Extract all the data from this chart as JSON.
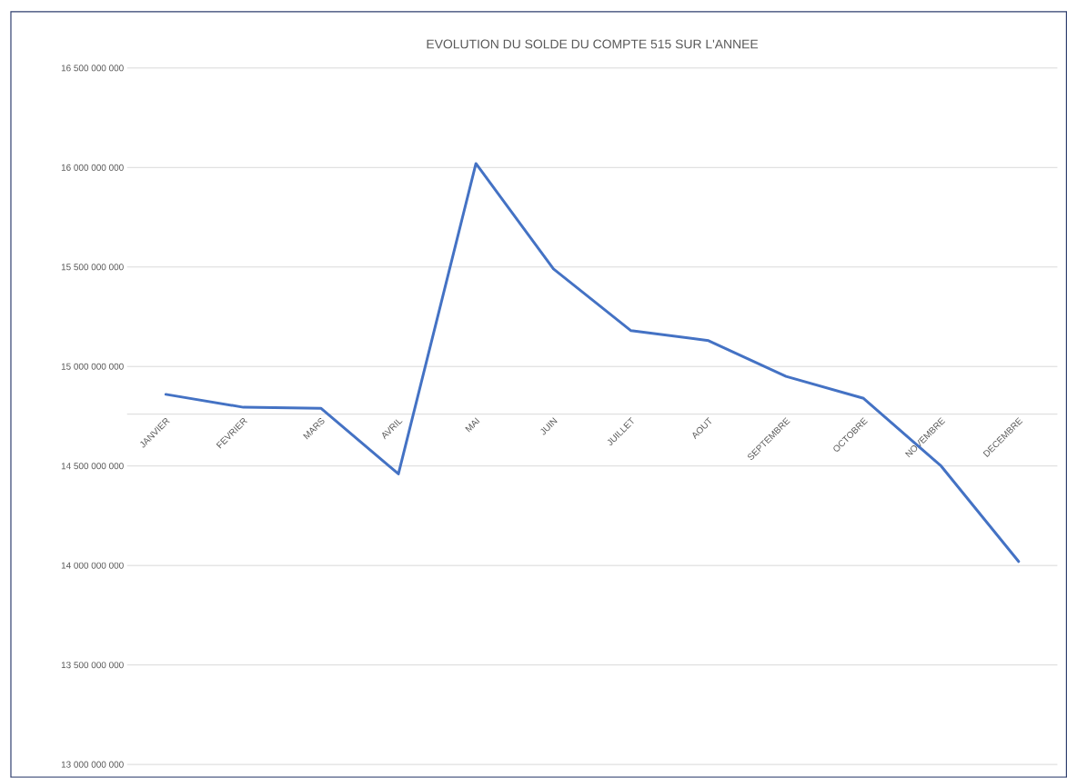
{
  "chart_data": {
    "type": "line",
    "title": "EVOLUTION DU SOLDE DU COMPTE 515 SUR L'ANNEE",
    "categories": [
      "JANVIER",
      "FEVRIER",
      "MARS",
      "AVRIL",
      "MAI",
      "JUIN",
      "JUILLET",
      "AOUT",
      "SEPTEMBRE",
      "OCTOBRE",
      "NOVEMBRE",
      "DECEMBRE"
    ],
    "series": [
      {
        "color": "#4472c4",
        "values": [
          14860000000,
          14795000000,
          14790000000,
          14460000000,
          16020000000,
          15490000000,
          15180000000,
          15130000000,
          14950000000,
          14840000000,
          14500000000,
          14020000000
        ]
      }
    ],
    "ylim": [
      13000000000,
      16500000000
    ],
    "yticks": [
      {
        "value": 13000000000,
        "label": "13 000 000 000"
      },
      {
        "value": 13500000000,
        "label": "13 500 000 000"
      },
      {
        "value": 14000000000,
        "label": "14 000 000 000"
      },
      {
        "value": 14500000000,
        "label": "14 500 000 000"
      },
      {
        "value": 15000000000,
        "label": "15 000 000 000"
      },
      {
        "value": 15500000000,
        "label": "15 500 000 000"
      },
      {
        "value": 16000000000,
        "label": "16 000 000 000"
      },
      {
        "value": 16500000000,
        "label": "16 500 000 000"
      }
    ],
    "grid": "y",
    "marker": "none",
    "line_style": "solid"
  }
}
